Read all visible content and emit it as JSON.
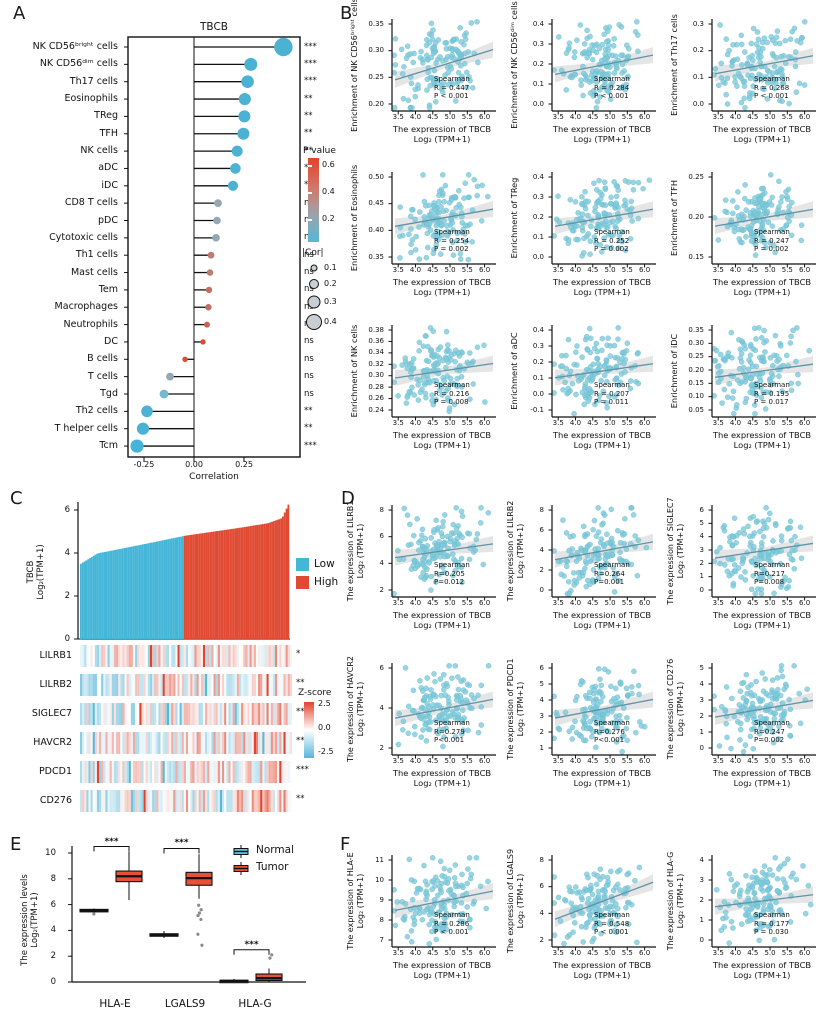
{
  "figure": {
    "panel_labels": [
      "A",
      "B",
      "C",
      "D",
      "E",
      "F"
    ]
  },
  "colors": {
    "axis": "#111111",
    "dot": "#7bc8da",
    "dot_rim": "#62b7cb",
    "trend": "#5f93a6",
    "band": "#b5b5b5",
    "lolli_blue": "#4cb2d4",
    "lolli_gray": "#94a7b2",
    "lolli_red": "#dd4b30",
    "bar_blue": "#45b5d8",
    "bar_red": "#e04a32",
    "heat_red": "#e2432c",
    "heat_blue": "#57b7d8",
    "box_normal": "#5bc6e8",
    "box_tumor": "#e65037",
    "legend_circle_fill": "#c9ced2"
  },
  "chart_data": [
    {
      "id": "A",
      "type": "lollipop",
      "title": "TBCB",
      "xlabel": "Correlation",
      "xticks": [
        "-0.25",
        "0.00",
        "0.25"
      ],
      "xtick_vals": [
        -0.25,
        0.0,
        0.25
      ],
      "xlim": [
        -0.33,
        0.53
      ],
      "legend_p": {
        "title": "P value",
        "ticks": [
          "0.6",
          "0.4",
          "0.2"
        ]
      },
      "legend_cor": {
        "title": "|Cor|",
        "labels": [
          "0.1",
          "0.2",
          "0.3",
          "0.4"
        ]
      },
      "rows": [
        {
          "label": "NK CD56ᵇʳⁱᵍʰᵗ cells",
          "value": 0.447,
          "sig": "***",
          "color": "#4cb2d4"
        },
        {
          "label": "NK CD56ᵈⁱᵐ cells",
          "value": 0.284,
          "sig": "***",
          "color": "#4cb2d4"
        },
        {
          "label": "Th17 cells",
          "value": 0.268,
          "sig": "***",
          "color": "#4cb2d4"
        },
        {
          "label": "Eosinophils",
          "value": 0.254,
          "sig": "**",
          "color": "#4cb2d4"
        },
        {
          "label": "TReg",
          "value": 0.252,
          "sig": "**",
          "color": "#4cb2d4"
        },
        {
          "label": "TFH",
          "value": 0.247,
          "sig": "**",
          "color": "#4cb2d4"
        },
        {
          "label": "NK cells",
          "value": 0.216,
          "sig": "**",
          "color": "#4cb2d4"
        },
        {
          "label": "aDC",
          "value": 0.207,
          "sig": "*",
          "color": "#4cb2d4"
        },
        {
          "label": "iDC",
          "value": 0.195,
          "sig": "*",
          "color": "#4cb2d4"
        },
        {
          "label": "CD8 T cells",
          "value": 0.12,
          "sig": "ns",
          "color": "#94a7b2"
        },
        {
          "label": "pDC",
          "value": 0.115,
          "sig": "ns",
          "color": "#94a7b2"
        },
        {
          "label": "Cytotoxic cells",
          "value": 0.11,
          "sig": "ns",
          "color": "#94a7b2"
        },
        {
          "label": "Th1 cells",
          "value": 0.085,
          "sig": "ns",
          "color": "#bb7e72"
        },
        {
          "label": "Mast cells",
          "value": 0.08,
          "sig": "ns",
          "color": "#bb7e72"
        },
        {
          "label": "Tem",
          "value": 0.075,
          "sig": "ns",
          "color": "#c1705f"
        },
        {
          "label": "Macrophages",
          "value": 0.072,
          "sig": "ns",
          "color": "#c1705f"
        },
        {
          "label": "Neutrophils",
          "value": 0.065,
          "sig": "ns",
          "color": "#ca6450"
        },
        {
          "label": "DC",
          "value": 0.045,
          "sig": "ns",
          "color": "#dd4b30"
        },
        {
          "label": "B cells",
          "value": -0.045,
          "sig": "ns",
          "color": "#dd4b30"
        },
        {
          "label": "T cells",
          "value": -0.12,
          "sig": "ns",
          "color": "#94a7b2"
        },
        {
          "label": "Tgd",
          "value": -0.15,
          "sig": "ns",
          "color": "#74b9d0"
        },
        {
          "label": "Th2 cells",
          "value": -0.235,
          "sig": "**",
          "color": "#4cb2d4"
        },
        {
          "label": "T helper cells",
          "value": -0.255,
          "sig": "**",
          "color": "#4cb2d4"
        },
        {
          "label": "Tcm",
          "value": -0.285,
          "sig": "***",
          "color": "#44b4d9"
        }
      ]
    },
    {
      "id": "B",
      "type": "scatter-grid",
      "cols": 3,
      "xticks": [
        "3.5",
        "4.0",
        "4.5",
        "5.0",
        "5.5",
        "6.0"
      ],
      "xtick_vals": [
        3.5,
        4.0,
        4.5,
        5.0,
        5.5,
        6.0
      ],
      "xlabel": [
        "The expression of TBCB",
        "Log₂ (TPM+1)"
      ],
      "plots": [
        {
          "ylabel": "Enrichment of NK CD56ᵇʳⁱᵍʰᵗ cells",
          "yticks": [
            "0.20",
            "0.25",
            "0.30",
            "0.35"
          ],
          "r": 0.447,
          "stats": [
            "Spearman",
            "R = 0.447",
            "P < 0.001"
          ],
          "seed": 11
        },
        {
          "ylabel": "Enrichment of NK CD56ᵈⁱᵐ cells",
          "yticks": [
            "0.0",
            "0.1",
            "0.2",
            "0.3",
            "0.4"
          ],
          "r": 0.284,
          "stats": [
            "Spearman",
            "R = 0.284",
            "P < 0.001"
          ],
          "seed": 12
        },
        {
          "ylabel": "Enrichment of Th17 cells",
          "yticks": [
            "0.0",
            "0.1",
            "0.2",
            "0.3"
          ],
          "r": 0.268,
          "stats": [
            "Spearman",
            "R = 0.268",
            "P < 0.001"
          ],
          "seed": 13
        },
        {
          "ylabel": "Enrichment of Eosinophils",
          "yticks": [
            "0.35",
            "0.40",
            "0.45",
            "0.50"
          ],
          "r": 0.254,
          "stats": [
            "Spearman",
            "R = 0.254",
            "P = 0.002"
          ],
          "seed": 14
        },
        {
          "ylabel": "Enrichment of TReg",
          "yticks": [
            "0.0",
            "0.1",
            "0.2",
            "0.3",
            "0.4"
          ],
          "r": 0.252,
          "stats": [
            "Spearman",
            "R = 0.252",
            "P = 0.002"
          ],
          "seed": 15
        },
        {
          "ylabel": "Enrichment of TFH",
          "yticks": [
            "0.15",
            "0.20",
            "0.25"
          ],
          "r": 0.247,
          "stats": [
            "Spearman",
            "R = 0.247",
            "P = 0.002"
          ],
          "seed": 16
        },
        {
          "ylabel": "Enrichment of NK cells",
          "yticks": [
            "0.24",
            "0.26",
            "0.28",
            "0.30",
            "0.32",
            "0.34",
            "0.36",
            "0.38"
          ],
          "r": 0.216,
          "stats": [
            "Spearman",
            "R = 0.216",
            "P = 0.008"
          ],
          "seed": 17
        },
        {
          "ylabel": "Enrichment of aDC",
          "yticks": [
            "-0.1",
            "0.0",
            "0.1",
            "0.2",
            "0.3",
            "0.4"
          ],
          "r": 0.207,
          "stats": [
            "Spearman",
            "R = 0.207",
            "P = 0.011"
          ],
          "seed": 18
        },
        {
          "ylabel": "Enrichment of iDC",
          "yticks": [
            "0.05",
            "0.10",
            "0.15",
            "0.20",
            "0.25",
            "0.30",
            "0.35"
          ],
          "r": 0.195,
          "stats": [
            "Spearman",
            "R = 0.195",
            "P = 0.017"
          ],
          "seed": 19
        }
      ]
    },
    {
      "id": "C-bar",
      "type": "bar",
      "ylabel": [
        "TBCB",
        "Log₂(TPM+1)"
      ],
      "yticks": [
        "0",
        "2",
        "4",
        "6"
      ],
      "ytick_vals": [
        0,
        2,
        4,
        6
      ],
      "legend": [
        {
          "label": "Low",
          "color": "#45b5d8"
        },
        {
          "label": "High",
          "color": "#e04a32"
        }
      ],
      "n_samples": 115,
      "value_range": [
        3.5,
        6.25
      ]
    },
    {
      "id": "C-heatmap",
      "type": "heatmap",
      "rows": [
        {
          "gene": "LILRB1",
          "sig": "*"
        },
        {
          "gene": "LILRB2",
          "sig": "**"
        },
        {
          "gene": "SIGLEC7",
          "sig": "**"
        },
        {
          "gene": "HAVCR2",
          "sig": "***"
        },
        {
          "gene": "PDCD1",
          "sig": "***"
        },
        {
          "gene": "CD276",
          "sig": "**"
        }
      ],
      "legend": {
        "title": "Z-score",
        "ticks": [
          "2.5",
          "0.0",
          "-2.5"
        ]
      }
    },
    {
      "id": "D",
      "type": "scatter-grid",
      "cols": 3,
      "xticks": [
        "3.5",
        "4.0",
        "4.5",
        "5.0",
        "5.5",
        "6.0"
      ],
      "xtick_vals": [
        3.5,
        4.0,
        4.5,
        5.0,
        5.5,
        6.0
      ],
      "xlabel": [
        "The expression of TBCB",
        "Log₂ (TPM+1)"
      ],
      "plots": [
        {
          "ylabel": [
            "The expression of LILRB1",
            "Log₂ (TPM+1)"
          ],
          "yticks": [
            "2",
            "4",
            "6",
            "8"
          ],
          "r": 0.205,
          "stats": [
            "Spearman",
            "R=0.205",
            "P=0.012"
          ],
          "seed": 21
        },
        {
          "ylabel": [
            "The expression of LILRB2",
            "Log₂ (TPM+1)"
          ],
          "yticks": [
            "0",
            "2",
            "4",
            "6",
            "8"
          ],
          "r": 0.264,
          "stats": [
            "Spearman",
            "R=0.264",
            "P=0.001"
          ],
          "seed": 22
        },
        {
          "ylabel": [
            "The expression of SIGLEC7",
            "Log₂ (TPM+1)"
          ],
          "yticks": [
            "0",
            "1",
            "2",
            "3",
            "4",
            "5",
            "6"
          ],
          "r": 0.217,
          "stats": [
            "Spearman",
            "R=0.217",
            "P=0.008"
          ],
          "seed": 23
        },
        {
          "ylabel": [
            "The expression of HAVCR2",
            "Log₂ (TPM+1)"
          ],
          "yticks": [
            "2",
            "4",
            "6"
          ],
          "r": 0.279,
          "stats": [
            "Spearman",
            "R=0.279",
            "P<0.001"
          ],
          "seed": 24
        },
        {
          "ylabel": [
            "The expression of PDCD1",
            "Log₂ (TPM+1)"
          ],
          "yticks": [
            "1",
            "2",
            "3",
            "4",
            "5",
            "6"
          ],
          "r": 0.276,
          "stats": [
            "Spearman",
            "R=0.276",
            "P<0.001"
          ],
          "seed": 25
        },
        {
          "ylabel": [
            "The expression of CD276",
            "Log₂ (TPM+1)"
          ],
          "yticks": [
            "0",
            "1",
            "2",
            "3",
            "4",
            "5"
          ],
          "r": 0.247,
          "stats": [
            "Spearman",
            "R=0.247",
            "P=0.002"
          ],
          "seed": 26
        }
      ]
    },
    {
      "id": "E",
      "type": "box",
      "ylabel": [
        "The expression levels",
        "Log₂(TPM+1)"
      ],
      "yticks": [
        "0",
        "2",
        "4",
        "6",
        "8",
        "10"
      ],
      "ytick_vals": [
        0,
        2,
        4,
        6,
        8,
        10
      ],
      "legend": [
        {
          "label": "Normal",
          "color": "#5bc6e8"
        },
        {
          "label": "Tumor",
          "color": "#e65037"
        }
      ],
      "groups": [
        {
          "gene": "HLA-E",
          "sig": "***",
          "bracket_y": 10.5,
          "normal": {
            "lo": 5.42,
            "q1": 5.48,
            "med": 5.55,
            "q3": 5.63,
            "hi": 5.7,
            "outliers": [
              5.27
            ]
          },
          "tumor": {
            "lo": 6.35,
            "q1": 7.78,
            "med": 8.2,
            "q3": 8.6,
            "hi": 10.1,
            "outliers": []
          }
        },
        {
          "gene": "LGALS9",
          "sig": "***",
          "bracket_y": 10.35,
          "normal": {
            "lo": 3.4,
            "q1": 3.56,
            "med": 3.65,
            "q3": 3.74,
            "hi": 3.95,
            "outliers": []
          },
          "tumor": {
            "lo": 6.45,
            "q1": 7.5,
            "med": 8.05,
            "q3": 8.5,
            "hi": 9.9,
            "outliers": [
              5.95,
              5.6,
              5.35,
              5.15,
              4.85,
              3.7,
              2.85
            ]
          }
        },
        {
          "gene": "HLA-G",
          "sig": "***",
          "bracket_y": 2.5,
          "normal": {
            "lo": 0,
            "q1": 0.03,
            "med": 0.08,
            "q3": 0.14,
            "hi": 0.24,
            "outliers": []
          },
          "tumor": {
            "lo": 0,
            "q1": 0.12,
            "med": 0.3,
            "q3": 0.62,
            "hi": 1.05,
            "outliers": [
              1.85,
              2.1
            ]
          }
        }
      ]
    },
    {
      "id": "F",
      "type": "scatter-grid",
      "cols": 3,
      "xticks": [
        "3.5",
        "4.0",
        "4.5",
        "5.0",
        "5.5",
        "6.0"
      ],
      "xtick_vals": [
        3.5,
        4.0,
        4.5,
        5.0,
        5.5,
        6.0
      ],
      "xlabel": [
        "The expression of TBCB",
        "Log₂ (TPM+1)"
      ],
      "plots": [
        {
          "ylabel": [
            "The expression of HLA-E",
            "Log₂ (TPM+1)"
          ],
          "yticks": [
            "7",
            "8",
            "9",
            "10",
            "11"
          ],
          "r": 0.286,
          "stats": [
            "Spearman",
            "R = 0.286",
            "P < 0.001"
          ],
          "seed": 31
        },
        {
          "ylabel": [
            "The expression of LGALS9",
            "Log₂ (TPM+1)"
          ],
          "yticks": [
            "2",
            "4",
            "6",
            "8"
          ],
          "r": 0.548,
          "stats": [
            "Spearman",
            "R = 0.548",
            "P < 0.001"
          ],
          "seed": 32
        },
        {
          "ylabel": [
            "The expression of HLA-G",
            "Log₂ (TPM+1)"
          ],
          "yticks": [
            "0",
            "1",
            "2",
            "3",
            "4"
          ],
          "r": 0.177,
          "stats": [
            "Spearman",
            "R = 0.177",
            "P = 0.030"
          ],
          "seed": 33
        }
      ]
    }
  ]
}
